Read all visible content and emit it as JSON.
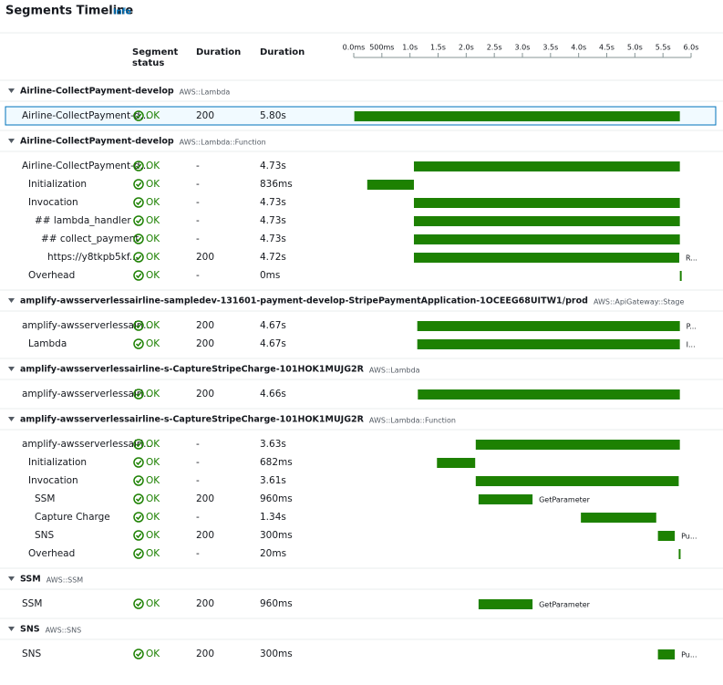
{
  "header": {
    "title": "Segments Timeline",
    "info": "Info"
  },
  "columns": {
    "status": "Segment status",
    "code": "Duration",
    "duration": "Duration"
  },
  "timeline": {
    "xlim": [
      0,
      6
    ],
    "xticks": [
      {
        "value": 0,
        "label": "0.0ms"
      },
      {
        "value": 0.5,
        "label": "500ms"
      },
      {
        "value": 1,
        "label": "1.0s"
      },
      {
        "value": 1.5,
        "label": "1.5s"
      },
      {
        "value": 2,
        "label": "2.0s"
      },
      {
        "value": 2.5,
        "label": "2.5s"
      },
      {
        "value": 3,
        "label": "3.0s"
      },
      {
        "value": 3.5,
        "label": "3.5s"
      },
      {
        "value": 4,
        "label": "4.0s"
      },
      {
        "value": 4.5,
        "label": "4.5s"
      },
      {
        "value": 5,
        "label": "5.0s"
      },
      {
        "value": 5.5,
        "label": "5.5s"
      },
      {
        "value": 6,
        "label": "6.0s"
      }
    ]
  },
  "sections": [
    {
      "name": "Airline-CollectPayment-develop",
      "type": "AWS::Lambda",
      "rows": [
        {
          "name": "Airline-CollectPayment-d...",
          "status": "OK",
          "code": "200",
          "duration": "5.80s",
          "start": 0.01,
          "end": 5.8
        }
      ]
    },
    {
      "name": "Airline-CollectPayment-develop",
      "type": "AWS::Lambda::Function",
      "rows": [
        {
          "name": "Airline-CollectPayment-d...",
          "status": "OK",
          "code": "-",
          "duration": "4.73s",
          "start": 1.07,
          "end": 5.8
        },
        {
          "name": "Initialization",
          "status": "OK",
          "code": "-",
          "duration": "836ms",
          "start": 0.24,
          "end": 1.07
        },
        {
          "name": "Invocation",
          "status": "OK",
          "code": "-",
          "duration": "4.73s",
          "start": 1.07,
          "end": 5.8
        },
        {
          "name": "## lambda_handler",
          "status": "OK",
          "code": "-",
          "duration": "4.73s",
          "start": 1.07,
          "end": 5.8
        },
        {
          "name": "## collect_payment",
          "status": "OK",
          "code": "-",
          "duration": "4.73s",
          "start": 1.07,
          "end": 5.8
        },
        {
          "name": "https://y8tkpb5kf...",
          "status": "OK",
          "code": "200",
          "duration": "4.72s",
          "start": 1.07,
          "end": 5.79,
          "note": "R..."
        },
        {
          "name": "Overhead",
          "status": "OK",
          "code": "-",
          "duration": "0ms",
          "start": 5.8,
          "end": 5.8
        }
      ]
    },
    {
      "name": "amplify-awsserverlessairline-sampledev-131601-payment-develop-StripePaymentApplication-1OCEEG68UITW1/prod",
      "type": "AWS::ApiGateway::Stage",
      "rows": [
        {
          "name": "amplify-awsserverlessairl...",
          "status": "OK",
          "code": "200",
          "duration": "4.67s",
          "start": 1.13,
          "end": 5.8,
          "note": "P..."
        },
        {
          "name": "Lambda",
          "status": "OK",
          "code": "200",
          "duration": "4.67s",
          "start": 1.13,
          "end": 5.8,
          "note": "I..."
        }
      ]
    },
    {
      "name": "amplify-awsserverlessairline-s-CaptureStripeCharge-101HOK1MUJG2R",
      "type": "AWS::Lambda",
      "rows": [
        {
          "name": "amplify-awsserverlessairl...",
          "status": "OK",
          "code": "200",
          "duration": "4.66s",
          "start": 1.14,
          "end": 5.8
        }
      ]
    },
    {
      "name": "amplify-awsserverlessairline-s-CaptureStripeCharge-101HOK1MUJG2R",
      "type": "AWS::Lambda::Function",
      "rows": [
        {
          "name": "amplify-awsserverlessairl...",
          "status": "OK",
          "code": "-",
          "duration": "3.63s",
          "start": 2.17,
          "end": 5.8
        },
        {
          "name": "Initialization",
          "status": "OK",
          "code": "-",
          "duration": "682ms",
          "start": 1.48,
          "end": 2.16
        },
        {
          "name": "Invocation",
          "status": "OK",
          "code": "-",
          "duration": "3.61s",
          "start": 2.17,
          "end": 5.78
        },
        {
          "name": "SSM",
          "status": "OK",
          "code": "200",
          "duration": "960ms",
          "start": 2.22,
          "end": 3.18,
          "note": "GetParameter"
        },
        {
          "name": "Capture Charge",
          "status": "OK",
          "code": "-",
          "duration": "1.34s",
          "start": 4.04,
          "end": 5.38
        },
        {
          "name": "SNS",
          "status": "OK",
          "code": "200",
          "duration": "300ms",
          "start": 5.41,
          "end": 5.71,
          "note": "Pu..."
        },
        {
          "name": "Overhead",
          "status": "OK",
          "code": "-",
          "duration": "20ms",
          "start": 5.78,
          "end": 5.8
        }
      ]
    },
    {
      "name": "SSM",
      "type": "AWS::SSM",
      "rows": [
        {
          "name": "SSM",
          "status": "OK",
          "code": "200",
          "duration": "960ms",
          "start": 2.22,
          "end": 3.18,
          "note": "GetParameter"
        }
      ]
    },
    {
      "name": "SNS",
      "type": "AWS::SNS",
      "rows": [
        {
          "name": "SNS",
          "status": "OK",
          "code": "200",
          "duration": "300ms",
          "start": 5.41,
          "end": 5.71,
          "note": "Pu..."
        }
      ]
    }
  ]
}
